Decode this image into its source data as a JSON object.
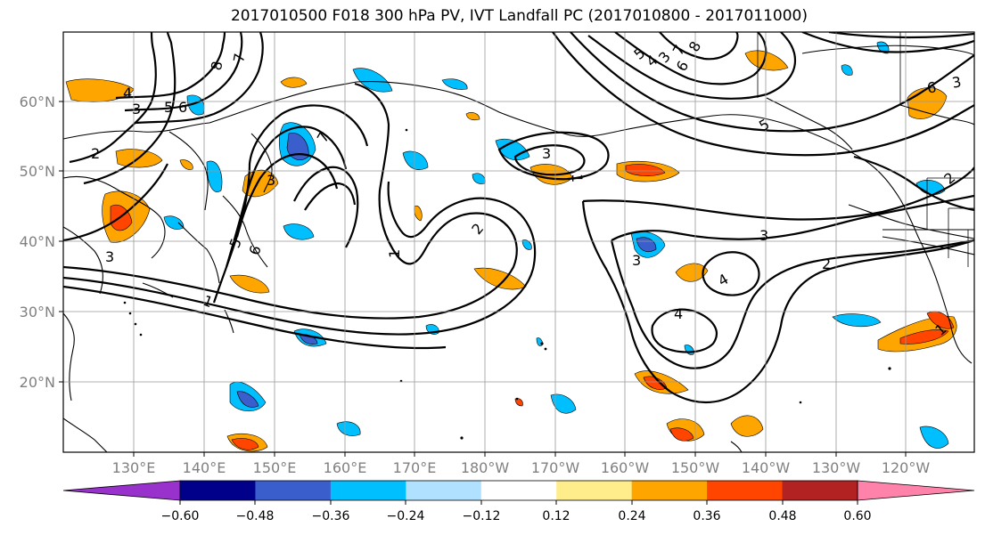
{
  "title": "2017010500 F018 300 hPa PV, IVT Landfall PC (2017010800 - 2017011000)",
  "lat_labels": [
    "60°N",
    "50°N",
    "40°N",
    "30°N",
    "20°N"
  ],
  "lon_labels": [
    "130°E",
    "140°E",
    "150°E",
    "160°E",
    "170°E",
    "180°W",
    "170°W",
    "160°W",
    "150°W",
    "140°W",
    "130°W",
    "120°W"
  ],
  "colorbar": {
    "colors": [
      "#9932cc",
      "#00008b",
      "#3a5fcd",
      "#00bfff",
      "#b0e2ff",
      "#ffffff",
      "#ffec8b",
      "#ffa500",
      "#ff4500",
      "#b22222",
      "#ff82ab"
    ],
    "tick_labels": [
      "−0.60",
      "−0.48",
      "−0.36",
      "−0.24",
      "−0.12",
      "0.12",
      "0.24",
      "0.36",
      "0.48",
      "0.60"
    ]
  },
  "contour_labels": [
    "8",
    "7",
    "6",
    "5",
    "4",
    "3",
    "3",
    "2",
    "1",
    "3",
    "5",
    "6",
    "7",
    "1",
    "2",
    "3",
    "1",
    "3",
    "2",
    "4",
    "4",
    "3",
    "2",
    "3",
    "5",
    "6",
    "7",
    "8",
    "6",
    "5",
    "4",
    "3",
    "1"
  ]
}
